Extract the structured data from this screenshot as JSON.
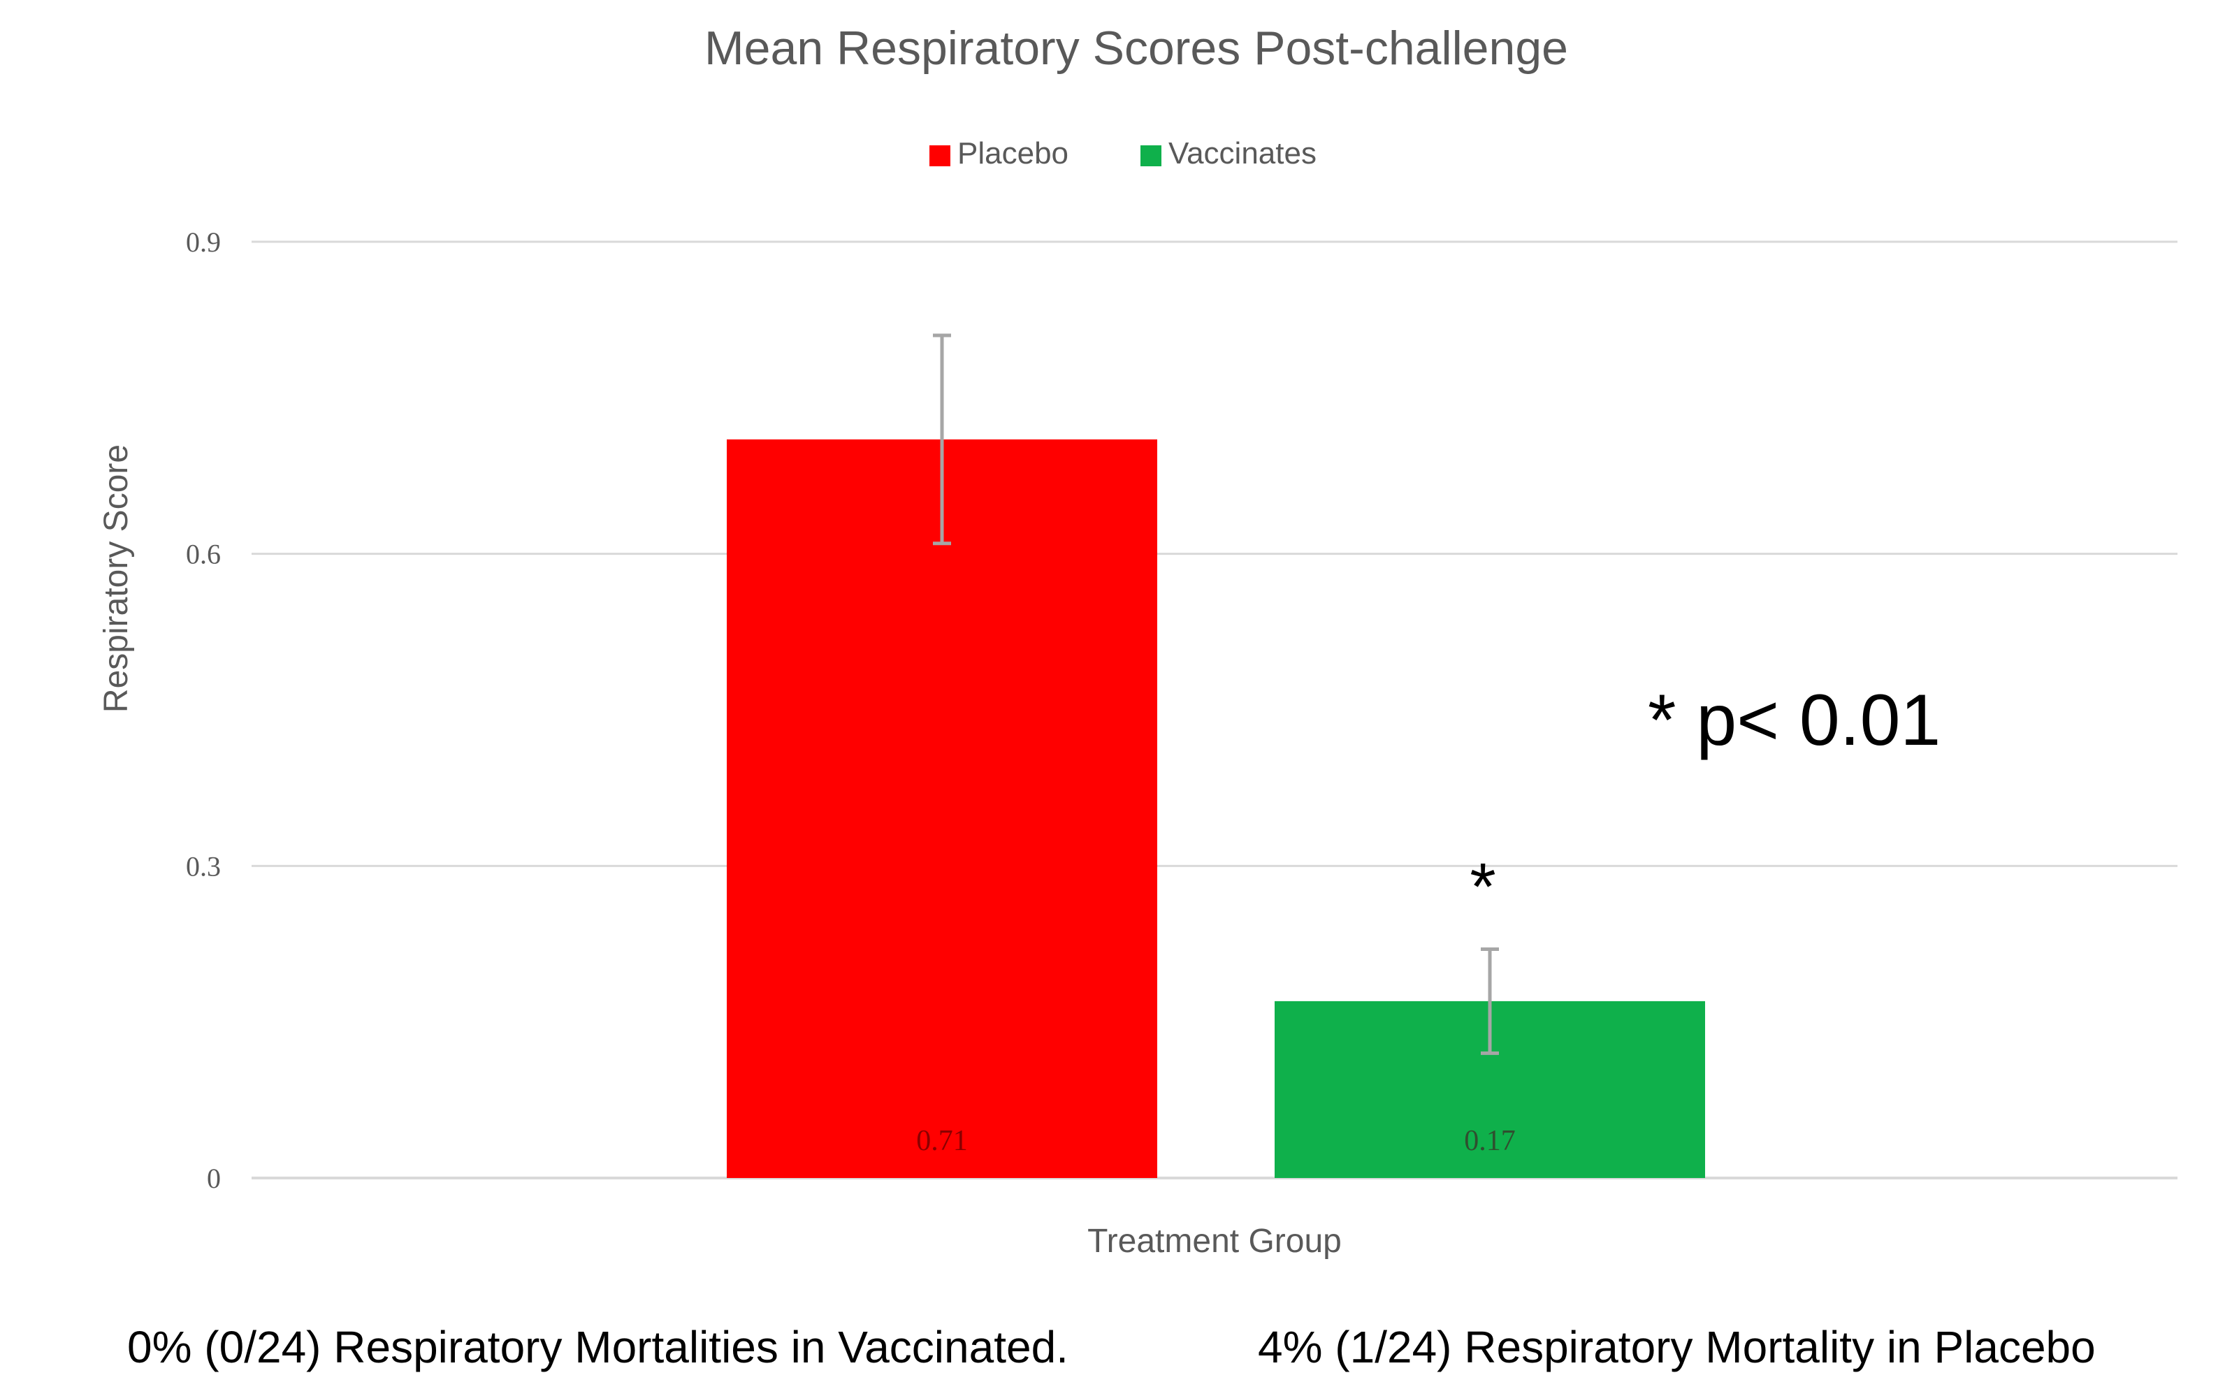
{
  "chart_data": {
    "type": "bar",
    "title": "Mean Respiratory Scores Post-challenge",
    "xlabel": "Treatment Group",
    "ylabel": "Respiratory Score",
    "ylim": [
      0,
      0.9
    ],
    "yticks": [
      "0",
      "0.3",
      "0.6",
      "0.9"
    ],
    "ytick_values": [
      0,
      0.3,
      0.6,
      0.9
    ],
    "grid": true,
    "legend_position": "top-center",
    "series": [
      {
        "name": "Placebo",
        "value": 0.71,
        "value_label": "0.71",
        "error_low": 0.61,
        "error_high": 0.81,
        "color": "#ff0000",
        "label_color": "#8b0000"
      },
      {
        "name": "Vaccinates",
        "value": 0.17,
        "value_label": "0.17",
        "error_low": 0.12,
        "error_high": 0.22,
        "color": "#0fb04b",
        "label_color": "#2f4f2f"
      }
    ],
    "annotations": {
      "significance_marker": "*",
      "significance_note": "* p< 0.01"
    },
    "footnotes": [
      "0% (0/24) Respiratory Mortalities in Vaccinated.",
      "4% (1/24) Respiratory Mortality in Placebo"
    ]
  },
  "colors": {
    "text": "#595959",
    "gridline": "#d9d9d9",
    "error_bar": "#a6a6a6"
  }
}
